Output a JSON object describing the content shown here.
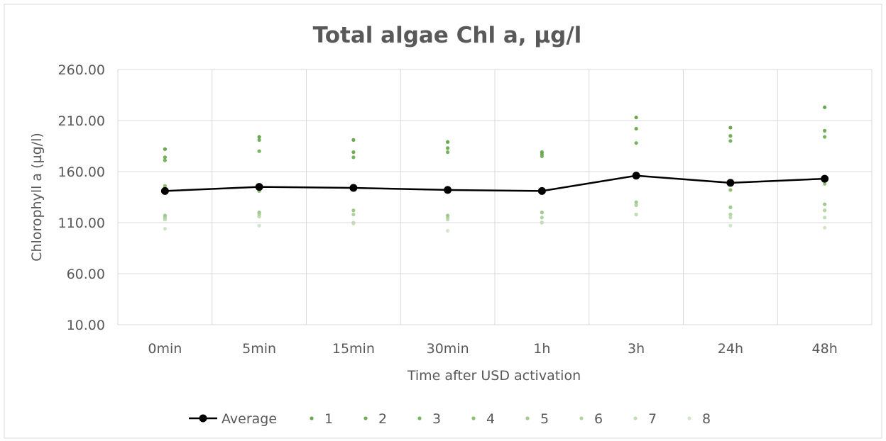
{
  "chart_data": {
    "type": "line",
    "title": "Total algae Chl a, µg/l",
    "xlabel": "Time after USD activation",
    "ylabel": "Chlorophyll a (µg/l)",
    "ylim": [
      10,
      260
    ],
    "yticks": [
      "260.00",
      "210.00",
      "160.00",
      "110.00",
      "60.00",
      "10.00"
    ],
    "ytick_values": [
      260,
      210,
      160,
      110,
      60,
      10
    ],
    "categories": [
      "0min",
      "5min",
      "15min",
      "30min",
      "1h",
      "3h",
      "24h",
      "48h"
    ],
    "grid": true,
    "legend_position": "bottom",
    "series": [
      {
        "name": "Average",
        "style": "line-marker",
        "color": "#000000",
        "values": [
          141,
          145,
          144,
          142,
          141,
          156,
          149,
          153
        ]
      },
      {
        "name": "1",
        "style": "marker",
        "color": "#6aa84f",
        "values": [
          182,
          194,
          191,
          189,
          179,
          213,
          203,
          223
        ]
      },
      {
        "name": "2",
        "style": "marker",
        "color": "#70ad57",
        "values": [
          174,
          191,
          179,
          183,
          177,
          202,
          195,
          200
        ]
      },
      {
        "name": "3",
        "style": "marker",
        "color": "#78b35f",
        "values": [
          171,
          180,
          174,
          179,
          175,
          188,
          190,
          194
        ]
      },
      {
        "name": "4",
        "style": "marker",
        "color": "#8cbf74",
        "values": [
          146,
          141,
          144,
          144,
          142,
          157,
          142,
          148
        ]
      },
      {
        "name": "5",
        "style": "marker",
        "color": "#a0ca8c",
        "values": [
          117,
          120,
          122,
          117,
          120,
          130,
          125,
          128
        ]
      },
      {
        "name": "6",
        "style": "marker",
        "color": "#b2d4a2",
        "values": [
          115,
          118,
          118,
          115,
          115,
          127,
          118,
          122
        ]
      },
      {
        "name": "7",
        "style": "marker",
        "color": "#c2dcb5",
        "values": [
          113,
          116,
          110,
          113,
          110,
          118,
          115,
          115
        ]
      },
      {
        "name": "8",
        "style": "marker",
        "color": "#d3e5c9",
        "values": [
          104,
          107,
          109,
          102,
          110,
          118,
          107,
          105
        ]
      }
    ]
  }
}
